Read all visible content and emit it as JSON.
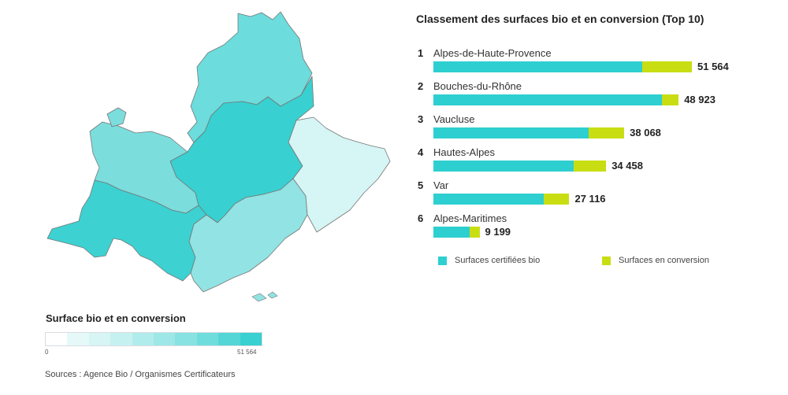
{
  "map": {
    "legend_title": "Surface bio et en conversion",
    "scale_min": "0",
    "scale_max": "51 564",
    "scale_colors": [
      "#ffffff",
      "#e6f9f9",
      "#d7f5f5",
      "#c6f1f1",
      "#b1ecec",
      "#9de7e7",
      "#88e2e2",
      "#70dddd",
      "#55d6d6",
      "#38d0d0"
    ],
    "sources": "Sources : Agence Bio / Organismes Certificateurs",
    "departments": [
      {
        "name": "Alpes-de-Haute-Provence",
        "value": 51564,
        "color": "#38d0d0"
      },
      {
        "name": "Bouches-du-Rhône",
        "value": 48923,
        "color": "#3dd1d1"
      },
      {
        "name": "Vaucluse",
        "value": 38068,
        "color": "#7cdddd"
      },
      {
        "name": "Hautes-Alpes",
        "value": 34458,
        "color": "#6cdcdc"
      },
      {
        "name": "Var",
        "value": 27116,
        "color": "#92e3e3"
      },
      {
        "name": "Alpes-Maritimes",
        "value": 9199,
        "color": "#d6f5f5"
      }
    ]
  },
  "chart_data": {
    "type": "bar",
    "orientation": "horizontal",
    "stacked": true,
    "title": "Classement des surfaces bio et en conversion (Top 10)",
    "categories": [
      "Alpes-de-Haute-Provence",
      "Bouches-du-Rhône",
      "Vaucluse",
      "Hautes-Alpes",
      "Var",
      "Alpes-Maritimes"
    ],
    "ranks": [
      "1",
      "2",
      "3",
      "4",
      "5",
      "6"
    ],
    "totals": [
      51564,
      48923,
      38068,
      34458,
      27116,
      9199
    ],
    "total_labels": [
      "51 564",
      "48 923",
      "38 068",
      "34 458",
      "27 116",
      "9 199"
    ],
    "series": [
      {
        "name": "Surfaces certifiées bio",
        "color": "#2ecfd0",
        "values": [
          41700,
          45600,
          31000,
          28000,
          22000,
          7300
        ]
      },
      {
        "name": "Surfaces en conversion",
        "color": "#c8de12",
        "values": [
          9864,
          3323,
          7068,
          6458,
          5116,
          1899
        ]
      }
    ],
    "legend_position": "bottom"
  }
}
